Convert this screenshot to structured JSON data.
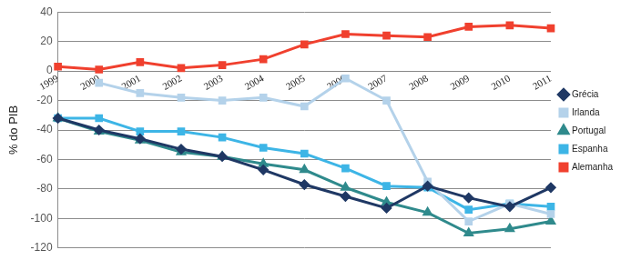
{
  "chart_data": {
    "type": "line",
    "y_label": "% do PIB",
    "categories": [
      "1999",
      "2000",
      "2001",
      "2002",
      "2003",
      "2004",
      "2005",
      "2006",
      "2007",
      "2008",
      "2009",
      "2010",
      "2011"
    ],
    "ylim": [
      -120,
      40
    ],
    "yticks": [
      -120,
      -100,
      -80,
      -60,
      -40,
      -20,
      0,
      20,
      40
    ],
    "grid": true,
    "legend": "right",
    "series": [
      {
        "name": "Grécia",
        "color": "#1f3864",
        "marker": "diamond",
        "values": [
          -32,
          -40,
          -46,
          -53,
          -58,
          -67,
          -77,
          -85,
          -93,
          -78,
          -86,
          -92,
          -79
        ]
      },
      {
        "name": "Irlanda",
        "color": "#b4d2ea",
        "marker": "square",
        "values": [
          null,
          -8,
          -15,
          -18,
          -20,
          -18,
          -24,
          -5,
          -20,
          -75,
          -102,
          -90,
          -97
        ]
      },
      {
        "name": "Portugal",
        "color": "#2f8a8c",
        "marker": "triangle",
        "values": [
          -32,
          -41,
          -47,
          -55,
          -58,
          -63,
          -67,
          -79,
          -89,
          -96,
          -110,
          -107,
          -102
        ]
      },
      {
        "name": "Espanha",
        "color": "#3db5e6",
        "marker": "square",
        "values": [
          -32,
          -32,
          -41,
          -41,
          -45,
          -52,
          -56,
          -66,
          -78,
          -79,
          -94,
          -90,
          -92
        ]
      },
      {
        "name": "Alemanha",
        "color": "#f0402e",
        "marker": "square",
        "values": [
          3,
          1,
          6,
          2,
          4,
          8,
          18,
          25,
          24,
          23,
          30,
          31,
          29
        ]
      }
    ]
  }
}
